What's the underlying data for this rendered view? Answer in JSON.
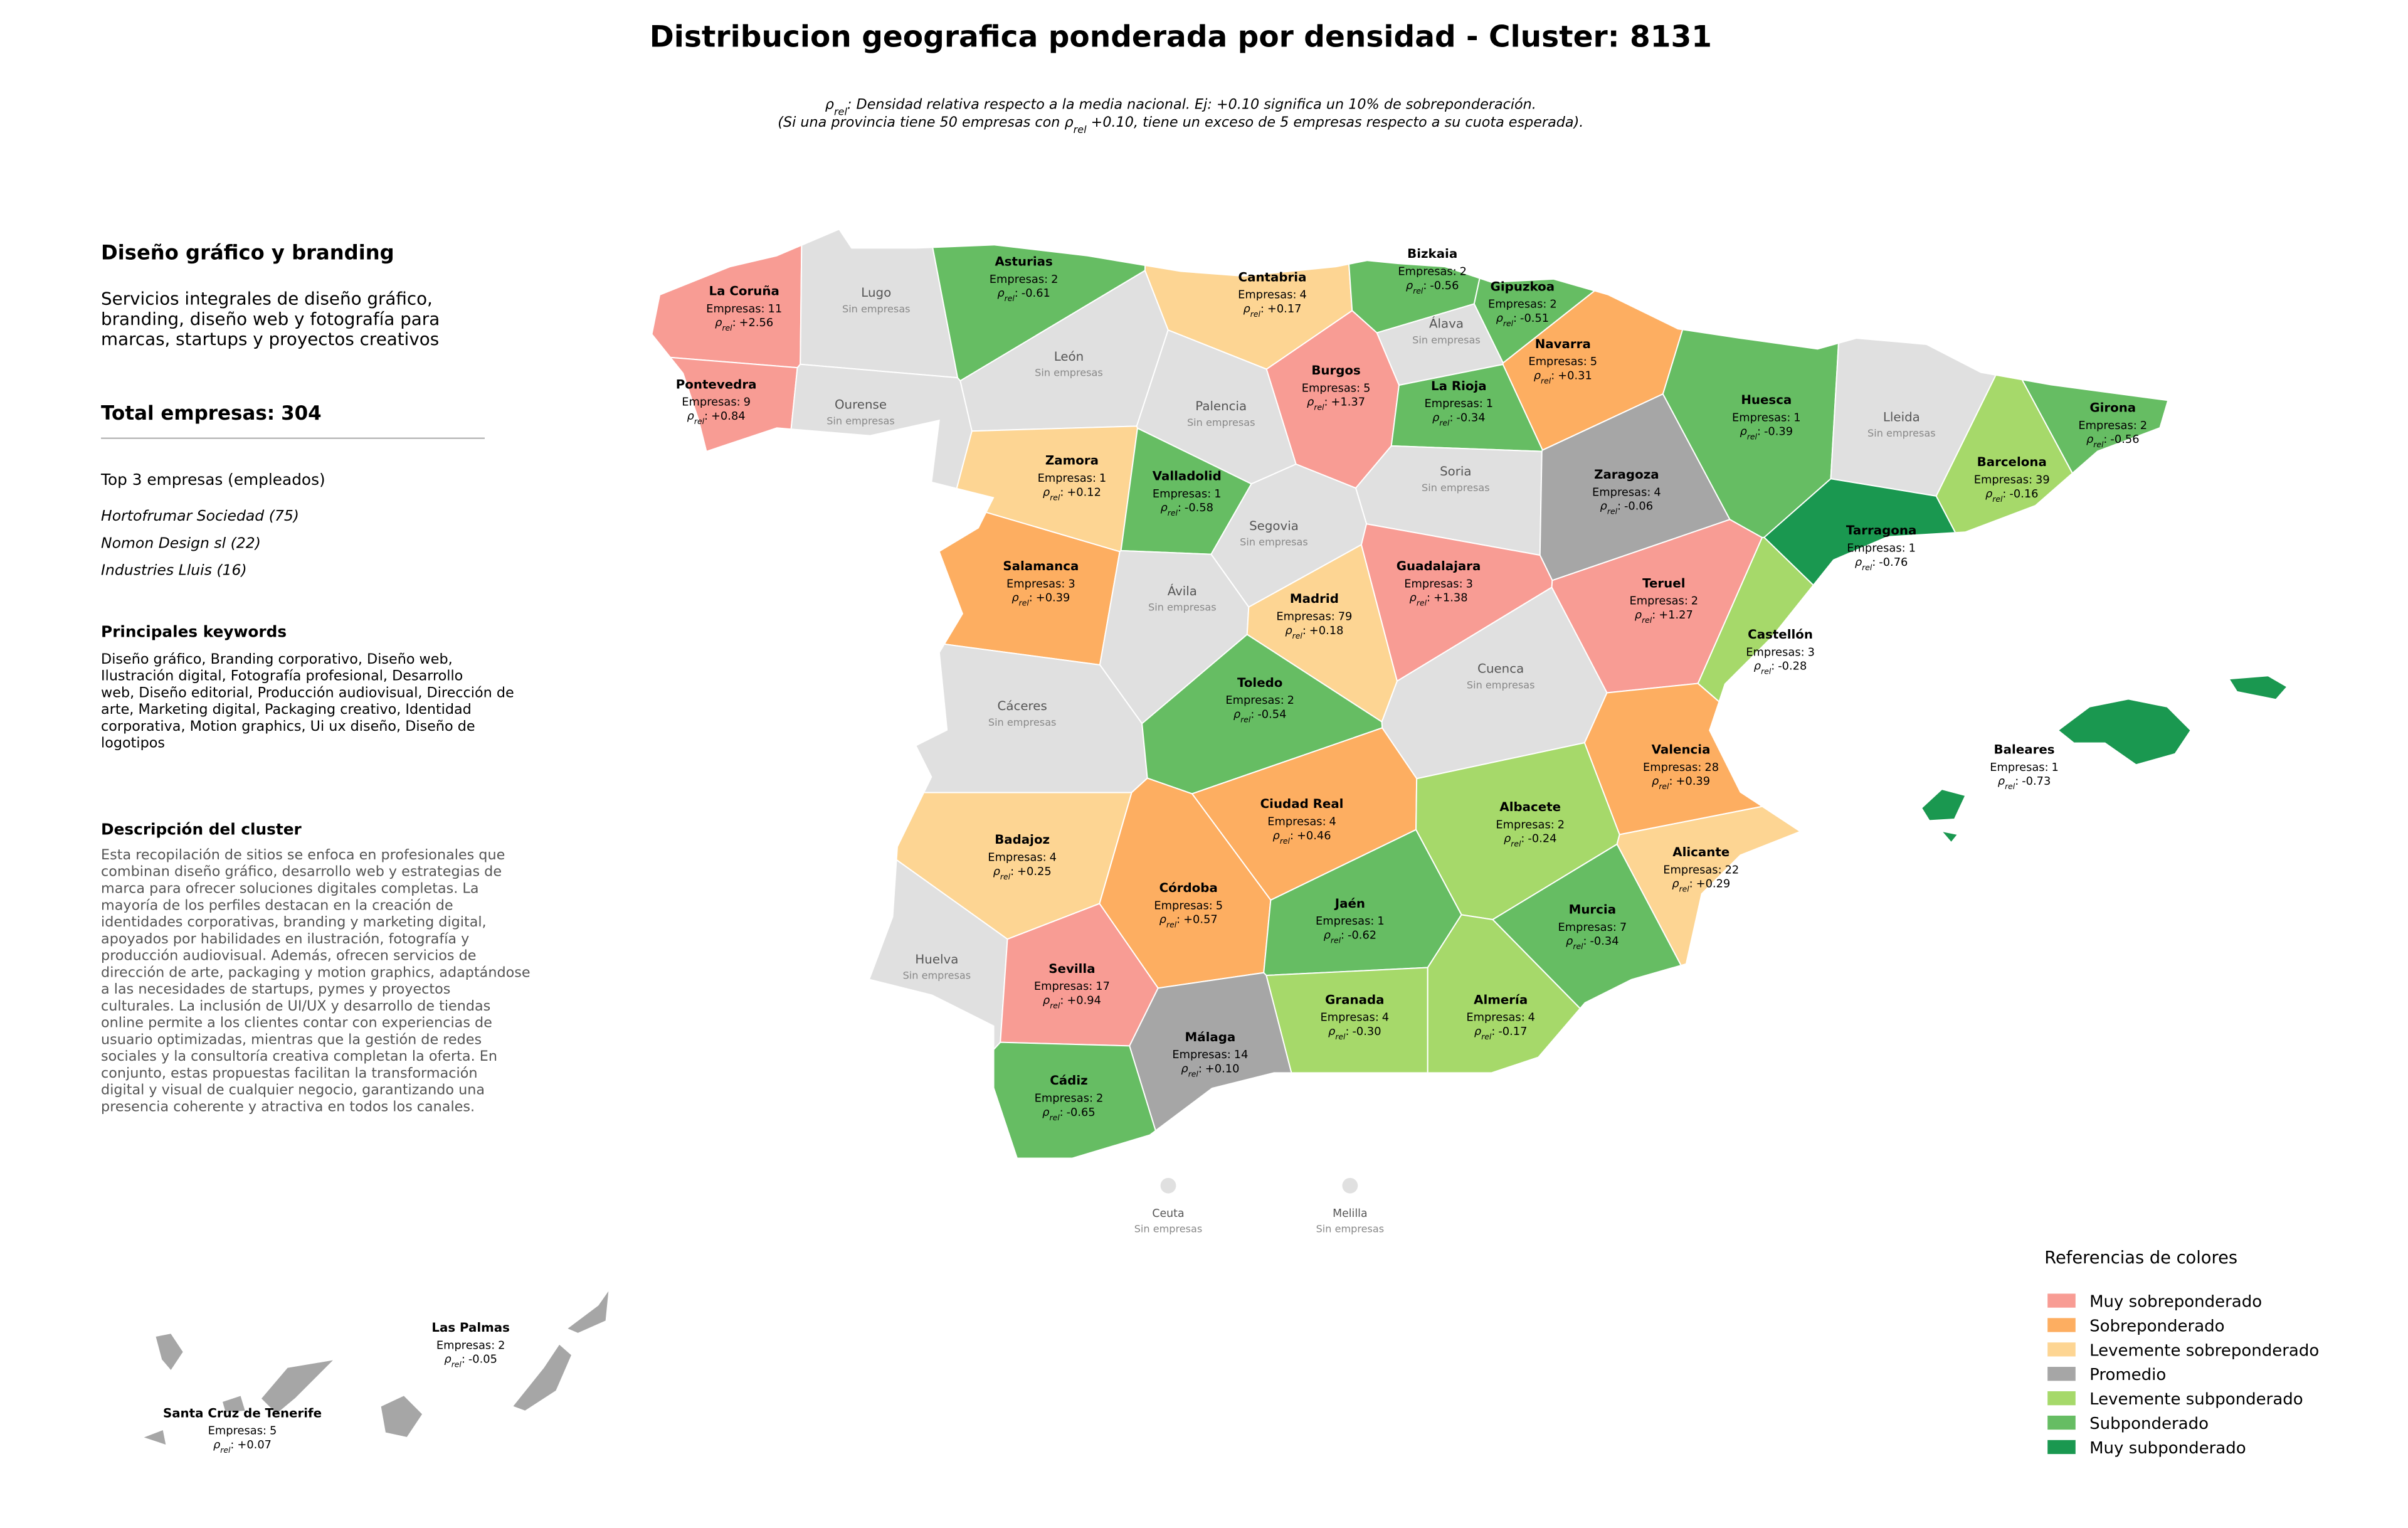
{
  "header": {
    "title": "Distribucion geografica ponderada por densidad - Cluster: 8131",
    "subtitle_lines": [
      [
        "ρ",
        "rel",
        ": Densidad relativa respecto a la media nacional. Ej: +0.10 significa un 10% de sobreponderación."
      ],
      [
        "(Si una provincia tiene 50 empresas con ρ",
        "rel",
        " +0.10, tiene un exceso de 5 empresas respecto a su cuota esperada)."
      ]
    ]
  },
  "panel": {
    "title": "Diseño gráfico y branding",
    "description_lines": [
      "Servicios integrales de diseño gráfico,",
      "branding, diseño web y fotografía para",
      "marcas, startups y proyectos creativos"
    ],
    "total_label": "Total empresas:",
    "total": 304,
    "top_title": "Top 3 empresas (empleados)",
    "top": [
      "Hortofrumar Sociedad (75)",
      "Nomon Design sl (22)",
      "Industries Lluis (16)"
    ],
    "keywords_title": "Principales keywords",
    "keywords_lines": [
      "Diseño gráfico, Branding corporativo, Diseño web,",
      "Ilustración digital, Fotografía profesional, Desarrollo",
      "web, Diseño editorial, Producción audiovisual, Dirección de",
      "arte, Marketing digital, Packaging creativo, Identidad",
      "corporativa, Motion graphics, Ui ux diseño, Diseño de",
      "logotipos"
    ],
    "cluster_title": "Descripción del cluster",
    "cluster_lines": [
      "Esta recopilación de sitios se enfoca en profesionales que",
      "combinan diseño gráfico, desarrollo web y estrategias de",
      "marca para ofrecer soluciones digitales completas. La",
      "mayoría de los perfiles destacan en la creación de",
      "identidades corporativas, branding y marketing digital,",
      "apoyados por habilidades en ilustración, fotografía y",
      "producción audiovisual. Además, ofrecen servicios de",
      "dirección de arte, packaging y motion graphics, adaptándose",
      "a las necesidades de startups, pymes y proyectos",
      "culturales. La inclusión de UI/UX y desarrollo de tiendas",
      "online permite a los clientes contar con experiencias de",
      "usuario optimizadas, mientras que la gestión de redes",
      "sociales y la consultoría creativa completan la oferta. En",
      "conjunto, estas propuestas facilitan la transformación",
      "digital y visual de cualquier negocio, garantizando una",
      "presencia coherente y atractiva en todos los canales."
    ]
  },
  "map": {
    "count_label": "Empresas:",
    "rho_symbol": "ρ",
    "rho_subscript": "rel",
    "rho_separator": ":",
    "no_data_text": "Sin empresas",
    "provinces": [
      {
        "name": "La Coruña",
        "color": "#f89c94",
        "empresas": 11,
        "rho": "+2.56"
      },
      {
        "name": "Lugo",
        "color": "#e0e0e0"
      },
      {
        "name": "Pontevedra",
        "color": "#f89c94",
        "empresas": 9,
        "rho": "+0.84"
      },
      {
        "name": "Ourense",
        "color": "#e0e0e0"
      },
      {
        "name": "Asturias",
        "color": "#66bd63",
        "empresas": 2,
        "rho": "-0.61"
      },
      {
        "name": "Cantabria",
        "color": "#fdd593",
        "empresas": 4,
        "rho": "+0.17"
      },
      {
        "name": "Bizkaia",
        "color": "#66bd63",
        "empresas": 2,
        "rho": "-0.56"
      },
      {
        "name": "Gipuzkoa",
        "color": "#66bd63",
        "empresas": 2,
        "rho": "-0.51"
      },
      {
        "name": "Álava",
        "color": "#e0e0e0"
      },
      {
        "name": "Navarra",
        "color": "#fdae61",
        "empresas": 5,
        "rho": "+0.31"
      },
      {
        "name": "León",
        "color": "#e0e0e0"
      },
      {
        "name": "Palencia",
        "color": "#e0e0e0"
      },
      {
        "name": "Burgos",
        "color": "#f89c94",
        "empresas": 5,
        "rho": "+1.37"
      },
      {
        "name": "La Rioja",
        "color": "#66bd63",
        "empresas": 1,
        "rho": "-0.34"
      },
      {
        "name": "Zamora",
        "color": "#fdd593",
        "empresas": 1,
        "rho": "+0.12"
      },
      {
        "name": "Valladolid",
        "color": "#66bd63",
        "empresas": 1,
        "rho": "-0.58"
      },
      {
        "name": "Soria",
        "color": "#e0e0e0"
      },
      {
        "name": "Zaragoza",
        "color": "#a6a6a6",
        "empresas": 4,
        "rho": "-0.06"
      },
      {
        "name": "Huesca",
        "color": "#66bd63",
        "empresas": 1,
        "rho": "-0.39"
      },
      {
        "name": "Lleida",
        "color": "#e0e0e0"
      },
      {
        "name": "Girona",
        "color": "#66bd63",
        "empresas": 2,
        "rho": "-0.56"
      },
      {
        "name": "Barcelona",
        "color": "#a6d96a",
        "empresas": 39,
        "rho": "-0.16"
      },
      {
        "name": "Tarragona",
        "color": "#1a9850",
        "empresas": 1,
        "rho": "-0.76"
      },
      {
        "name": "Salamanca",
        "color": "#fdae61",
        "empresas": 3,
        "rho": "+0.39"
      },
      {
        "name": "Segovia",
        "color": "#e0e0e0"
      },
      {
        "name": "Ávila",
        "color": "#e0e0e0"
      },
      {
        "name": "Madrid",
        "color": "#fdd593",
        "empresas": 79,
        "rho": "+0.18"
      },
      {
        "name": "Guadalajara",
        "color": "#f89c94",
        "empresas": 3,
        "rho": "+1.38"
      },
      {
        "name": "Teruel",
        "color": "#f89c94",
        "empresas": 2,
        "rho": "+1.27"
      },
      {
        "name": "Castellón",
        "color": "#a6d96a",
        "empresas": 3,
        "rho": "-0.28"
      },
      {
        "name": "Cáceres",
        "color": "#e0e0e0"
      },
      {
        "name": "Toledo",
        "color": "#66bd63",
        "empresas": 2,
        "rho": "-0.54"
      },
      {
        "name": "Cuenca",
        "color": "#e0e0e0"
      },
      {
        "name": "Valencia",
        "color": "#fdae61",
        "empresas": 28,
        "rho": "+0.39"
      },
      {
        "name": "Badajoz",
        "color": "#fdd593",
        "empresas": 4,
        "rho": "+0.25"
      },
      {
        "name": "Ciudad Real",
        "color": "#fdae61",
        "empresas": 4,
        "rho": "+0.46"
      },
      {
        "name": "Albacete",
        "color": "#a6d96a",
        "empresas": 2,
        "rho": "-0.24"
      },
      {
        "name": "Alicante",
        "color": "#fdd593",
        "empresas": 22,
        "rho": "+0.29"
      },
      {
        "name": "Córdoba",
        "color": "#fdae61",
        "empresas": 5,
        "rho": "+0.57"
      },
      {
        "name": "Jaén",
        "color": "#66bd63",
        "empresas": 1,
        "rho": "-0.62"
      },
      {
        "name": "Murcia",
        "color": "#66bd63",
        "empresas": 7,
        "rho": "-0.34"
      },
      {
        "name": "Huelva",
        "color": "#e0e0e0"
      },
      {
        "name": "Sevilla",
        "color": "#f89c94",
        "empresas": 17,
        "rho": "+0.94"
      },
      {
        "name": "Granada",
        "color": "#a6d96a",
        "empresas": 4,
        "rho": "-0.30"
      },
      {
        "name": "Almería",
        "color": "#a6d96a",
        "empresas": 4,
        "rho": "-0.17"
      },
      {
        "name": "Málaga",
        "color": "#a6a6a6",
        "empresas": 14,
        "rho": "+0.10"
      },
      {
        "name": "Cádiz",
        "color": "#66bd63",
        "empresas": 2,
        "rho": "-0.65"
      },
      {
        "name": "Baleares",
        "color": "#1a9850",
        "empresas": 1,
        "rho": "-0.73"
      },
      {
        "name": "Ceuta",
        "color": "#e0e0e0"
      },
      {
        "name": "Melilla",
        "color": "#e0e0e0"
      },
      {
        "name": "Las Palmas",
        "color": "#a6a6a6",
        "empresas": 2,
        "rho": "-0.05"
      },
      {
        "name": "Santa Cruz de Tenerife",
        "color": "#a6a6a6",
        "empresas": 5,
        "rho": "+0.07"
      }
    ]
  },
  "legend": {
    "title": "Referencias de colores",
    "items": [
      {
        "name": "Muy sobreponderado",
        "color": "#f89c94"
      },
      {
        "name": "Sobreponderado",
        "color": "#fdae61"
      },
      {
        "name": "Levemente sobreponderado",
        "color": "#fdd593"
      },
      {
        "name": "Promedio",
        "color": "#a6a6a6"
      },
      {
        "name": "Levemente subponderado",
        "color": "#a6d96a"
      },
      {
        "name": "Subponderado",
        "color": "#66bd63"
      },
      {
        "name": "Muy subponderado",
        "color": "#1a9850"
      }
    ]
  }
}
